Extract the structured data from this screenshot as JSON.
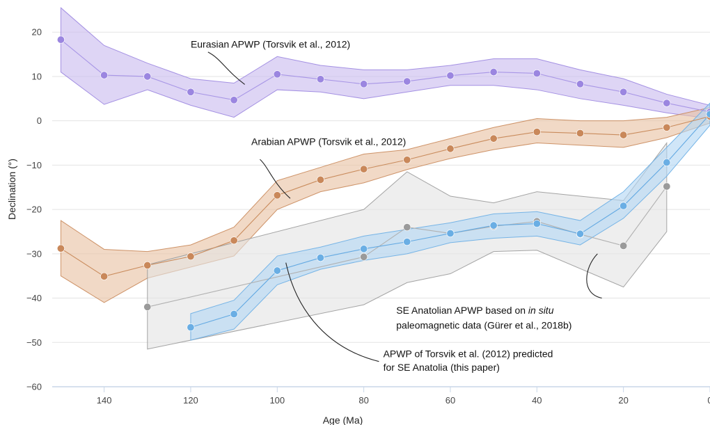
{
  "chart_data": {
    "type": "line",
    "title": "",
    "xlabel": "Age (Ma)",
    "ylabel": "Declination (°)",
    "xlim": [
      152,
      0
    ],
    "ylim": [
      -60,
      26
    ],
    "x_reversed": true,
    "x_ticks": [
      140,
      120,
      100,
      80,
      60,
      40,
      20,
      0
    ],
    "y_ticks": [
      20,
      10,
      0,
      -10,
      -20,
      -30,
      -40,
      -50,
      -60
    ],
    "grid": "horizontal",
    "legend": "none",
    "series": [
      {
        "key": "eurasian",
        "color": "#9b86e0",
        "band_color": "#c9bcef",
        "line_color": "#a896e6",
        "band_upper_x": [
          150,
          140,
          130,
          120,
          110,
          100,
          90,
          80,
          70,
          60,
          50,
          40,
          30,
          20,
          10,
          0
        ],
        "band_upper": [
          25.5,
          17,
          13,
          9.5,
          8.5,
          14.5,
          12.5,
          11.5,
          11.5,
          12.5,
          14,
          14,
          11.5,
          9.5,
          6,
          3.5
        ],
        "band_lower_x": [
          150,
          140,
          130,
          120,
          110,
          100,
          90,
          80,
          70,
          60,
          50,
          40,
          30,
          20,
          10,
          0
        ],
        "band_lower": [
          11,
          3.7,
          7,
          3.5,
          0.8,
          7,
          6.5,
          5,
          6.5,
          8,
          8,
          7,
          5,
          3.5,
          1.8,
          0.5
        ],
        "points": [
          [
            150,
            18.3
          ],
          [
            140,
            10.3
          ],
          [
            130,
            10
          ],
          [
            120,
            6.5
          ],
          [
            110,
            4.7
          ],
          [
            100,
            10.5
          ],
          [
            90,
            9.4
          ],
          [
            80,
            8.3
          ],
          [
            70,
            8.9
          ],
          [
            60,
            10.2
          ],
          [
            50,
            11
          ],
          [
            40,
            10.7
          ],
          [
            30,
            8.3
          ],
          [
            20,
            6.5
          ],
          [
            10,
            4
          ],
          [
            0,
            2
          ]
        ]
      },
      {
        "key": "arabian",
        "color": "#c9885a",
        "band_color": "#e8c2a3",
        "line_color": "#c98b5c",
        "band_upper_x": [
          150,
          140,
          130,
          120,
          110,
          100,
          90,
          80,
          70,
          60,
          50,
          40,
          30,
          20,
          10,
          0
        ],
        "band_upper": [
          -22.5,
          -29,
          -29.5,
          -28,
          -24,
          -13.5,
          -10.5,
          -7.5,
          -6.5,
          -4,
          -1.5,
          0.5,
          0,
          0,
          0.8,
          3
        ],
        "band_lower_x": [
          150,
          140,
          130,
          120,
          110,
          100,
          90,
          80,
          70,
          60,
          50,
          40,
          30,
          20,
          10,
          0
        ],
        "band_lower": [
          -35,
          -41,
          -35.5,
          -33,
          -30.5,
          -20,
          -16,
          -14,
          -11,
          -8.5,
          -6.5,
          -5,
          -5.5,
          -6,
          -3.8,
          -0.5
        ],
        "points": [
          [
            150,
            -28.8
          ],
          [
            140,
            -35.1
          ],
          [
            130,
            -32.6
          ],
          [
            120,
            -30.6
          ],
          [
            110,
            -27
          ],
          [
            100,
            -16.8
          ],
          [
            90,
            -13.3
          ],
          [
            80,
            -10.9
          ],
          [
            70,
            -8.8
          ],
          [
            60,
            -6.3
          ],
          [
            50,
            -4
          ],
          [
            40,
            -2.5
          ],
          [
            30,
            -2.8
          ],
          [
            20,
            -3.2
          ],
          [
            10,
            -1.5
          ],
          [
            0,
            1
          ]
        ]
      },
      {
        "key": "se_anatolian_insitu",
        "color": "#9a9a9a",
        "band_color": "#e4e4e4",
        "line_color": "#b0b0b0",
        "band_upper_x": [
          130,
          80,
          70,
          60,
          50,
          40,
          20,
          10
        ],
        "band_upper": [
          -32.5,
          -20,
          -11.5,
          -17,
          -18.5,
          -16,
          -18,
          -5
        ],
        "band_lower_x": [
          130,
          80,
          70,
          60,
          50,
          40,
          20,
          10
        ],
        "band_lower": [
          -51.5,
          -41.5,
          -36.5,
          -34.5,
          -29.5,
          -29.2,
          -37.5,
          -25
        ],
        "points": [
          [
            130,
            -42
          ],
          [
            80,
            -30.7
          ],
          [
            70,
            -24
          ],
          [
            60,
            -25.4
          ],
          [
            50,
            -23.8
          ],
          [
            40,
            -22.7
          ],
          [
            30,
            -25.6
          ],
          [
            20,
            -28.2
          ],
          [
            10,
            -14.8
          ]
        ]
      },
      {
        "key": "predicted",
        "color": "#6aaee4",
        "band_color": "#b3d6f3",
        "line_color": "#63a9e2",
        "band_upper_x": [
          120,
          110,
          100,
          90,
          80,
          70,
          60,
          50,
          40,
          30,
          20,
          10,
          0
        ],
        "band_upper": [
          -43.5,
          -40.5,
          -30.5,
          -28.5,
          -26,
          -24.5,
          -23,
          -21,
          -20.5,
          -22.5,
          -16,
          -6,
          4
        ],
        "band_lower_x": [
          120,
          110,
          100,
          90,
          80,
          70,
          60,
          50,
          40,
          30,
          20,
          10,
          0
        ],
        "band_lower": [
          -49.5,
          -47,
          -37,
          -33.5,
          -31.5,
          -30,
          -27.5,
          -26.5,
          -26,
          -28,
          -22,
          -12.5,
          -1
        ],
        "points": [
          [
            120,
            -46.6
          ],
          [
            110,
            -43.6
          ],
          [
            100,
            -33.8
          ],
          [
            90,
            -30.9
          ],
          [
            80,
            -28.9
          ],
          [
            70,
            -27.3
          ],
          [
            60,
            -25.4
          ],
          [
            50,
            -23.6
          ],
          [
            40,
            -23.2
          ],
          [
            30,
            -25.5
          ],
          [
            20,
            -19.2
          ],
          [
            10,
            -9.4
          ],
          [
            0,
            1.5
          ]
        ]
      }
    ],
    "annotations": [
      {
        "key": "eurasian",
        "lines": [
          "Eurasian APWP (Torsvik et al., 2012)"
        ],
        "text_at": [
          120,
          16.5
        ],
        "leader": [
          [
            116,
            15.5
          ],
          [
            113,
            14
          ],
          [
            112,
            11.5
          ],
          [
            107.5,
            8.2
          ]
        ]
      },
      {
        "key": "arabian",
        "lines": [
          "Arabian APWP (Torsvik et al., 2012)"
        ],
        "text_at": [
          106,
          -5.5
        ],
        "leader": [
          [
            104,
            -8.7
          ],
          [
            102,
            -10.5
          ],
          [
            101,
            -14
          ],
          [
            97,
            -17.5
          ]
        ]
      },
      {
        "key": "se_anatolian_insitu",
        "lines": [
          "SE Anatolian APWP based on in situ",
          "paleomagnetic data (Gürer et al., 2018b)"
        ],
        "text_at": [
          72.5,
          -43.5
        ],
        "line_gap": 3.4,
        "leader": [
          [
            25,
            -40
          ],
          [
            30,
            -39
          ],
          [
            29,
            -33
          ],
          [
            26,
            -30
          ]
        ]
      },
      {
        "key": "predicted",
        "lines": [
          "APWP of Torsvik et al. (2012) predicted",
          "for SE Anatolia (this paper)"
        ],
        "text_at": [
          75.5,
          -53.3
        ],
        "line_gap": 3.1,
        "leader": [
          [
            76.5,
            -54.3
          ],
          [
            90,
            -51
          ],
          [
            96,
            -41
          ],
          [
            98,
            -32
          ]
        ]
      }
    ]
  },
  "annotation_text": {
    "eurasian": "Eurasian APWP (Torsvik et al., 2012)",
    "arabian": "Arabian APWP (Torsvik et al., 2012)",
    "se_line1_a": "SE Anatolian APWP based on ",
    "se_line1_italic": "in situ",
    "se_line2": "paleomagnetic data (Gürer et al., 2018b)",
    "pred_line1": "APWP of Torsvik et al. (2012) predicted",
    "pred_line2": "for SE Anatolia (this paper)"
  }
}
